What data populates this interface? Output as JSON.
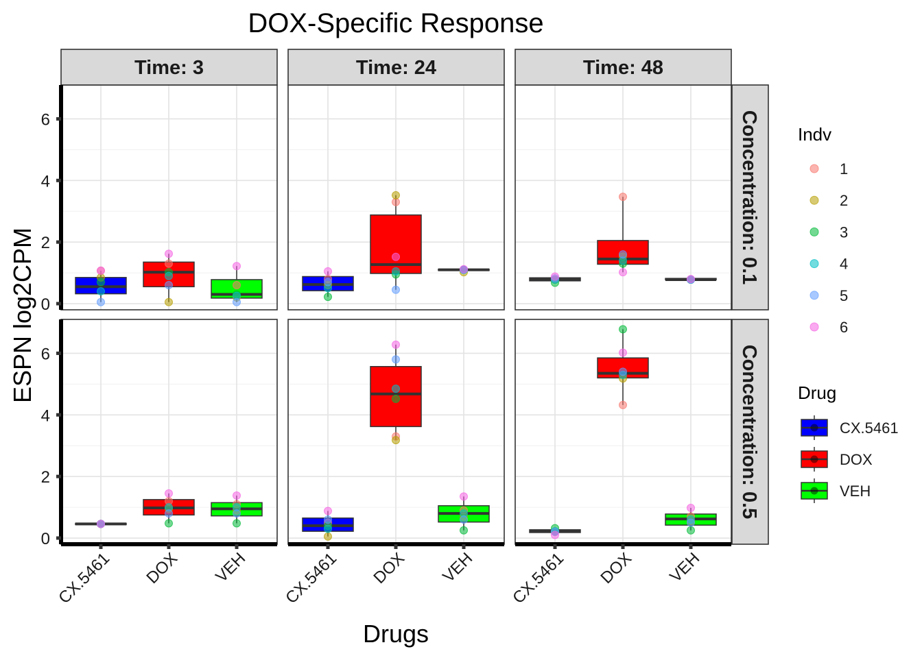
{
  "chart_data": {
    "type": "boxplot",
    "title": "DOX-Specific Response",
    "xlabel": "Drugs",
    "ylabel": "ESPN  log2CPM",
    "ylim": [
      -0.2,
      7.1
    ],
    "yticks": [
      0,
      2,
      4,
      6
    ],
    "categories": [
      "CX.5461",
      "DOX",
      "VEH"
    ],
    "facet_cols": [
      "Time: 3",
      "Time: 24",
      "Time: 48"
    ],
    "facet_rows": [
      "Concentration: 0.1",
      "Concentration: 0.5"
    ],
    "grid": true,
    "legend": {
      "placement": "right",
      "indv_title": "Indv",
      "indv": [
        {
          "label": "1",
          "color": "#F8766D"
        },
        {
          "label": "2",
          "color": "#B79F00"
        },
        {
          "label": "3",
          "color": "#00BA38"
        },
        {
          "label": "4",
          "color": "#00BFC4"
        },
        {
          "label": "5",
          "color": "#619CFF"
        },
        {
          "label": "6",
          "color": "#F564E3"
        }
      ],
      "drug_title": "Drug",
      "drugs": [
        {
          "label": "CX.5461",
          "color": "#0000FF"
        },
        {
          "label": "DOX",
          "color": "#FF0000"
        },
        {
          "label": "VEH",
          "color": "#00FF00"
        }
      ]
    },
    "panels": [
      {
        "row": 0,
        "col": 0,
        "boxes": [
          {
            "drug": "CX.5461",
            "q1": 0.32,
            "median": 0.55,
            "q3": 0.85,
            "wlo": 0.05,
            "whi": 1.07,
            "points": [
              [
                1,
                1.07
              ],
              [
                2,
                0.85
              ],
              [
                3,
                0.7
              ],
              [
                4,
                0.4
              ],
              [
                5,
                0.05
              ],
              [
                6,
                1.07
              ]
            ]
          },
          {
            "drug": "DOX",
            "q1": 0.55,
            "median": 1.02,
            "q3": 1.35,
            "wlo": 0.05,
            "whi": 1.62,
            "points": [
              [
                1,
                1.3
              ],
              [
                2,
                0.05
              ],
              [
                3,
                1.02
              ],
              [
                4,
                0.9
              ],
              [
                5,
                0.6
              ],
              [
                6,
                1.62
              ]
            ]
          },
          {
            "drug": "VEH",
            "q1": 0.18,
            "median": 0.3,
            "q3": 0.78,
            "wlo": 0.05,
            "whi": 1.22,
            "points": [
              [
                1,
                0.6
              ],
              [
                2,
                0.2
              ],
              [
                3,
                0.3
              ],
              [
                4,
                0.25
              ],
              [
                5,
                0.05
              ],
              [
                6,
                1.22
              ]
            ]
          }
        ]
      },
      {
        "row": 0,
        "col": 1,
        "boxes": [
          {
            "drug": "CX.5461",
            "q1": 0.42,
            "median": 0.62,
            "q3": 0.88,
            "wlo": 0.22,
            "whi": 1.05,
            "points": [
              [
                1,
                0.8
              ],
              [
                2,
                0.6
              ],
              [
                3,
                0.22
              ],
              [
                4,
                0.5
              ],
              [
                5,
                0.7
              ],
              [
                6,
                1.05
              ]
            ]
          },
          {
            "drug": "DOX",
            "q1": 0.98,
            "median": 1.27,
            "q3": 2.88,
            "wlo": 0.45,
            "whi": 3.52,
            "points": [
              [
                1,
                3.3
              ],
              [
                2,
                3.52
              ],
              [
                3,
                0.95
              ],
              [
                4,
                1.05
              ],
              [
                5,
                0.45
              ],
              [
                6,
                1.52
              ]
            ]
          },
          {
            "drug": "VEH",
            "q1": 1.08,
            "median": 1.1,
            "q3": 1.12,
            "wlo": 1.02,
            "whi": 1.14,
            "points": [
              [
                1,
                1.1
              ],
              [
                2,
                1.02
              ],
              [
                3,
                1.1
              ],
              [
                4,
                1.1
              ],
              [
                5,
                1.1
              ],
              [
                6,
                1.12
              ]
            ]
          }
        ]
      },
      {
        "row": 0,
        "col": 2,
        "boxes": [
          {
            "drug": "CX.5461",
            "q1": 0.74,
            "median": 0.8,
            "q3": 0.84,
            "wlo": 0.68,
            "whi": 0.88,
            "points": [
              [
                1,
                0.78
              ],
              [
                2,
                0.78
              ],
              [
                3,
                0.68
              ],
              [
                4,
                0.78
              ],
              [
                5,
                0.82
              ],
              [
                6,
                0.88
              ]
            ]
          },
          {
            "drug": "DOX",
            "q1": 1.28,
            "median": 1.45,
            "q3": 2.05,
            "wlo": 1.02,
            "whi": 3.47,
            "points": [
              [
                1,
                3.47
              ],
              [
                2,
                1.53
              ],
              [
                3,
                1.3
              ],
              [
                4,
                1.4
              ],
              [
                5,
                1.6
              ],
              [
                6,
                1.02
              ]
            ]
          },
          {
            "drug": "VEH",
            "q1": 0.78,
            "median": 0.78,
            "q3": 0.82,
            "wlo": 0.76,
            "whi": 0.82,
            "points": [
              [
                1,
                0.78
              ],
              [
                2,
                0.78
              ],
              [
                3,
                0.78
              ],
              [
                4,
                0.78
              ],
              [
                5,
                0.78
              ],
              [
                6,
                0.8
              ]
            ]
          }
        ]
      },
      {
        "row": 1,
        "col": 0,
        "boxes": [
          {
            "drug": "CX.5461",
            "q1": 0.44,
            "median": 0.46,
            "q3": 0.48,
            "wlo": 0.44,
            "whi": 0.48,
            "points": [
              [
                1,
                0.46
              ],
              [
                2,
                0.46
              ],
              [
                3,
                0.46
              ],
              [
                4,
                0.46
              ],
              [
                5,
                0.46
              ],
              [
                6,
                0.46
              ]
            ]
          },
          {
            "drug": "DOX",
            "q1": 0.75,
            "median": 0.98,
            "q3": 1.25,
            "wlo": 0.48,
            "whi": 1.45,
            "points": [
              [
                1,
                1.2
              ],
              [
                2,
                0.95
              ],
              [
                3,
                0.48
              ],
              [
                4,
                1.0
              ],
              [
                5,
                0.8
              ],
              [
                6,
                1.45
              ]
            ]
          },
          {
            "drug": "VEH",
            "q1": 0.72,
            "median": 0.95,
            "q3": 1.15,
            "wlo": 0.48,
            "whi": 1.38,
            "points": [
              [
                1,
                1.1
              ],
              [
                2,
                0.9
              ],
              [
                3,
                0.48
              ],
              [
                4,
                1.0
              ],
              [
                5,
                0.8
              ],
              [
                6,
                1.38
              ]
            ]
          }
        ]
      },
      {
        "row": 1,
        "col": 1,
        "boxes": [
          {
            "drug": "CX.5461",
            "q1": 0.22,
            "median": 0.4,
            "q3": 0.65,
            "wlo": 0.05,
            "whi": 0.88,
            "points": [
              [
                1,
                0.5
              ],
              [
                2,
                0.05
              ],
              [
                3,
                0.4
              ],
              [
                4,
                0.3
              ],
              [
                5,
                0.6
              ],
              [
                6,
                0.88
              ]
            ]
          },
          {
            "drug": "DOX",
            "q1": 3.62,
            "median": 4.68,
            "q3": 5.57,
            "wlo": 3.18,
            "whi": 6.28,
            "points": [
              [
                1,
                3.3
              ],
              [
                2,
                3.18
              ],
              [
                3,
                4.52
              ],
              [
                4,
                4.85
              ],
              [
                5,
                5.8
              ],
              [
                6,
                6.28
              ]
            ]
          },
          {
            "drug": "VEH",
            "q1": 0.52,
            "median": 0.8,
            "q3": 1.05,
            "wlo": 0.25,
            "whi": 1.35,
            "points": [
              [
                1,
                0.9
              ],
              [
                2,
                0.7
              ],
              [
                3,
                0.25
              ],
              [
                4,
                0.8
              ],
              [
                5,
                0.6
              ],
              [
                6,
                1.35
              ]
            ]
          }
        ]
      },
      {
        "row": 1,
        "col": 2,
        "boxes": [
          {
            "drug": "CX.5461",
            "q1": 0.18,
            "median": 0.22,
            "q3": 0.27,
            "wlo": 0.1,
            "whi": 0.32,
            "points": [
              [
                1,
                0.22
              ],
              [
                2,
                0.2
              ],
              [
                3,
                0.32
              ],
              [
                4,
                0.22
              ],
              [
                5,
                0.2
              ],
              [
                6,
                0.1
              ]
            ]
          },
          {
            "drug": "DOX",
            "q1": 5.2,
            "median": 5.35,
            "q3": 5.85,
            "wlo": 4.32,
            "whi": 6.78,
            "points": [
              [
                1,
                4.32
              ],
              [
                2,
                5.18
              ],
              [
                3,
                6.78
              ],
              [
                4,
                5.3
              ],
              [
                5,
                5.4
              ],
              [
                6,
                6.02
              ]
            ]
          },
          {
            "drug": "VEH",
            "q1": 0.42,
            "median": 0.62,
            "q3": 0.78,
            "wlo": 0.25,
            "whi": 0.98,
            "points": [
              [
                1,
                0.7
              ],
              [
                2,
                0.55
              ],
              [
                3,
                0.25
              ],
              [
                4,
                0.6
              ],
              [
                5,
                0.5
              ],
              [
                6,
                0.98
              ]
            ]
          }
        ]
      }
    ]
  }
}
